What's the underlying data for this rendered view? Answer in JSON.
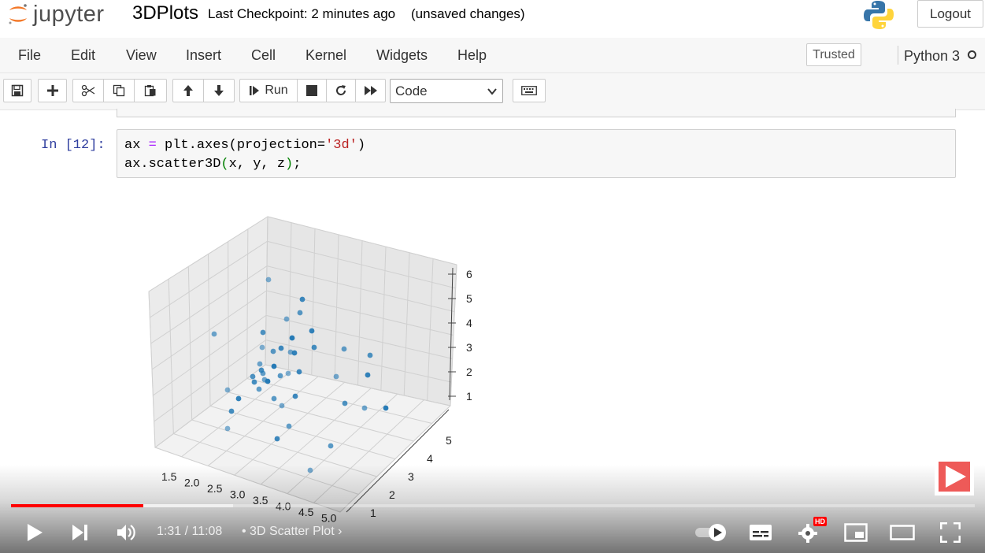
{
  "header": {
    "logo_text": "jupyter",
    "notebook_title": "3DPlots",
    "checkpoint": "Last Checkpoint: 2 minutes ago",
    "unsaved": "(unsaved changes)",
    "logout_label": "Logout"
  },
  "menu": {
    "items": [
      "File",
      "Edit",
      "View",
      "Insert",
      "Cell",
      "Kernel",
      "Widgets",
      "Help"
    ],
    "trusted_label": "Trusted",
    "kernel_name": "Python 3"
  },
  "toolbar": {
    "run_label": "Run",
    "cell_type": "Code"
  },
  "cell": {
    "prompt": "In [12]:",
    "line1": {
      "a": "ax ",
      "b": "=",
      "c": " plt.axes(projection=",
      "d": "'3d'",
      "e": ")"
    },
    "line2": {
      "a": "ax.scatter3D",
      "b": "(",
      "c": "x, y, z",
      "d": ")",
      "e": ";"
    }
  },
  "chart_data": {
    "type": "scatter",
    "projection": "3d",
    "x_ticks": [
      "1.5",
      "2.0",
      "2.5",
      "3.0",
      "3.5",
      "4.0",
      "4.5",
      "5.0"
    ],
    "y_ticks": [
      "1",
      "2",
      "3",
      "4",
      "5"
    ],
    "z_ticks": [
      "1",
      "2",
      "3",
      "4",
      "5",
      "6"
    ],
    "grid": true,
    "point_color": "#1f77b4"
  },
  "player": {
    "time": "1:31 / 11:08",
    "chapter": "3D Scatter Plot",
    "progress_fraction": 0.137,
    "buffered_fraction": 0.23,
    "hd_badge": "HD"
  }
}
